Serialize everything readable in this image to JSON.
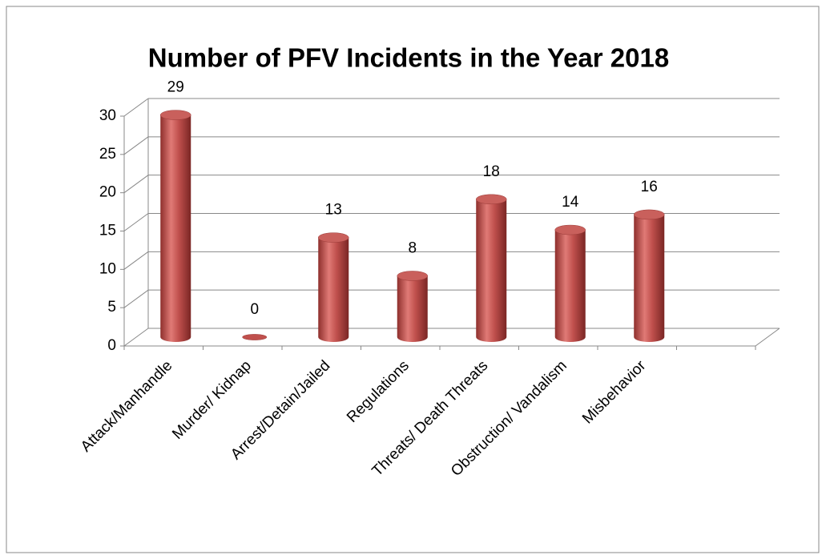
{
  "chart_data": {
    "type": "bar3d",
    "title": "Number of PFV Incidents  in the Year 2018",
    "categories": [
      "Attack/Manhandle",
      "Murder/ Kidnap",
      "Arrest/Detain/Jailed",
      "Regulations",
      "Threats/ Death Threats",
      "Obstruction/ Vandalism",
      "Misbehavior",
      null
    ],
    "values": [
      29,
      0,
      13,
      8,
      18,
      14,
      16,
      null
    ],
    "color": "#c0504d",
    "ylim": [
      0,
      30
    ],
    "yticks": [
      0,
      5,
      10,
      15,
      20,
      25,
      30
    ],
    "grid": true
  }
}
